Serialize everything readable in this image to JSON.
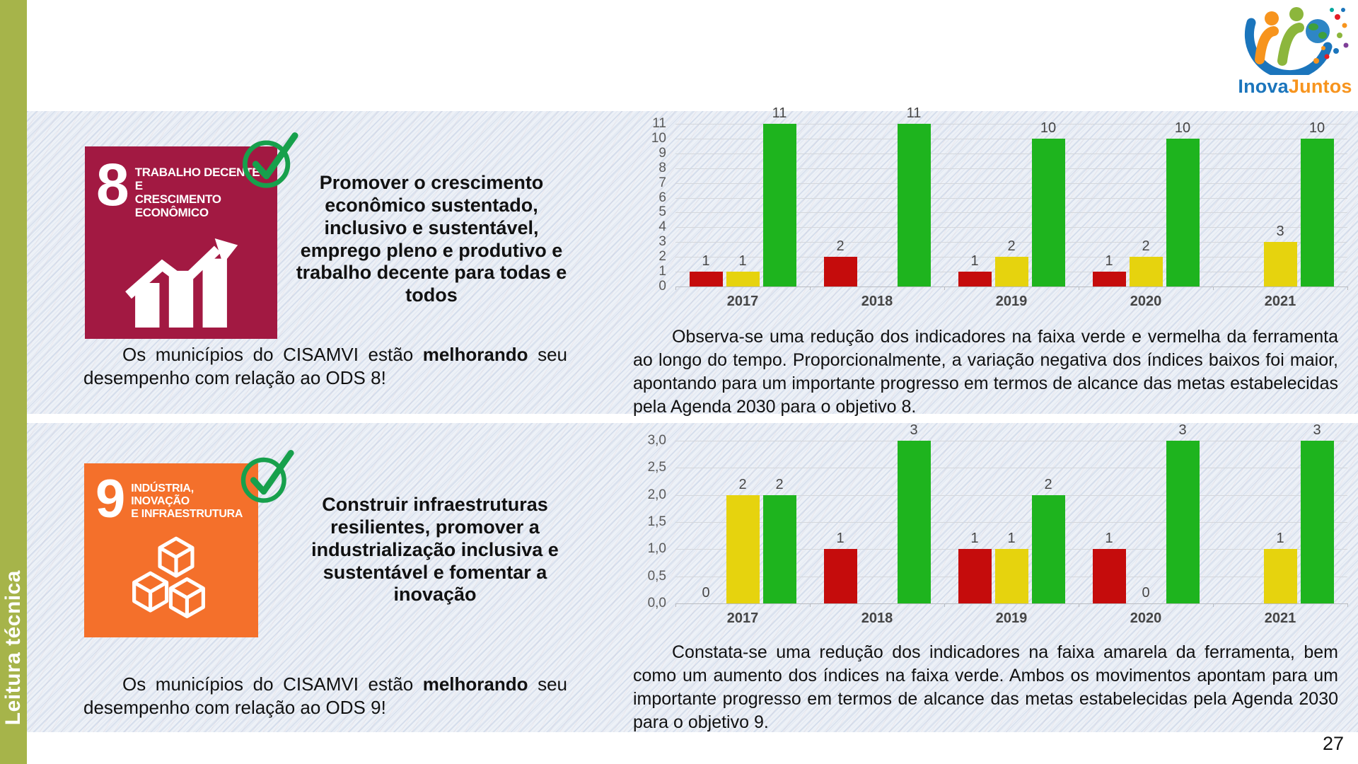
{
  "sidebar": {
    "label": "Leitura técnica"
  },
  "logo": {
    "name_blue": "Inova",
    "name_orange": "Juntos"
  },
  "page_number": "27",
  "sections": [
    {
      "goal_number": "8",
      "goal_title": "TRABALHO DECENTE E\nCRESCIMENTO\nECONÔMICO",
      "tile_color": "#A21942",
      "objective": "Promover o crescimento econômico sustentado, inclusivo e sustentável, emprego pleno e produtivo e trabalho decente para todas e todos",
      "caption": {
        "pre": "Os municípios do CISAMVI estão ",
        "bold": "melhorando",
        "post": " seu desempenho com relação ao ODS 8!"
      },
      "analysis": "Observa-se uma redução dos indicadores na faixa verde e vermelha da ferramenta ao longo do tempo. Proporcionalmente, a variação negativa dos índices baixos foi maior, apontando para um importante progresso em termos de alcance das metas estabelecidas pela Agenda 2030 para o objetivo 8."
    },
    {
      "goal_number": "9",
      "goal_title": "INDÚSTRIA, INOVAÇÃO\nE INFRAESTRUTURA",
      "tile_color": "#F4702B",
      "objective": "Construir infraestruturas resilientes, promover a industrialização inclusiva e sustentável e fomentar a inovação",
      "caption": {
        "pre": "Os municípios do CISAMVI estão ",
        "bold": "melhorando",
        "post": " seu desempenho com relação ao ODS 9!"
      },
      "analysis": "Constata-se uma redução dos indicadores na faixa amarela da ferramenta, bem como um aumento dos índices na faixa verde. Ambos os movimentos apontam para um importante progresso em termos de alcance das metas estabelecidas pela Agenda 2030 para o objetivo 9."
    }
  ],
  "chart_data": [
    {
      "type": "bar",
      "title": "",
      "categories": [
        "2017",
        "2018",
        "2019",
        "2020",
        "2021"
      ],
      "series": [
        {
          "name": "faixa vermelha",
          "color": "#C50C0C",
          "values": [
            1,
            2,
            1,
            1,
            null
          ]
        },
        {
          "name": "faixa amarela",
          "color": "#E6D30E",
          "values": [
            1,
            null,
            2,
            2,
            3
          ]
        },
        {
          "name": "faixa verde",
          "color": "#1EB41E",
          "values": [
            11,
            11,
            10,
            10,
            10
          ]
        }
      ],
      "ylim": [
        0,
        11
      ],
      "yticks": [
        {
          "value": 11,
          "label": "11"
        },
        {
          "value": 10,
          "label": "10"
        },
        {
          "value": 9,
          "label": "9"
        },
        {
          "value": 8,
          "label": "8"
        },
        {
          "value": 7,
          "label": "7"
        },
        {
          "value": 6,
          "label": "6"
        },
        {
          "value": 5,
          "label": "5"
        },
        {
          "value": 4,
          "label": "4"
        },
        {
          "value": 3,
          "label": "3"
        },
        {
          "value": 2,
          "label": "2"
        },
        {
          "value": 1,
          "label": "1"
        },
        {
          "value": 0,
          "label": "0"
        }
      ],
      "grid": true,
      "legend": false,
      "data_labels": true
    },
    {
      "type": "bar",
      "title": "",
      "categories": [
        "2017",
        "2018",
        "2019",
        "2020",
        "2021"
      ],
      "series": [
        {
          "name": "faixa vermelha",
          "color": "#C50C0C",
          "values": [
            0,
            1,
            1,
            1,
            null
          ]
        },
        {
          "name": "faixa amarela",
          "color": "#E6D30E",
          "values": [
            2,
            null,
            1,
            0,
            1
          ]
        },
        {
          "name": "faixa verde",
          "color": "#1EB41E",
          "values": [
            2,
            3,
            2,
            3,
            3
          ]
        }
      ],
      "ylim": [
        0,
        3
      ],
      "yticks": [
        {
          "value": 3,
          "label": "3,0"
        },
        {
          "value": 2.5,
          "label": "2,5"
        },
        {
          "value": 2,
          "label": "2,0"
        },
        {
          "value": 1.5,
          "label": "1,5"
        },
        {
          "value": 1,
          "label": "1,0"
        },
        {
          "value": 0.5,
          "label": "0,5"
        },
        {
          "value": 0,
          "label": "0,0"
        }
      ],
      "grid": true,
      "legend": false,
      "data_labels": true
    }
  ]
}
